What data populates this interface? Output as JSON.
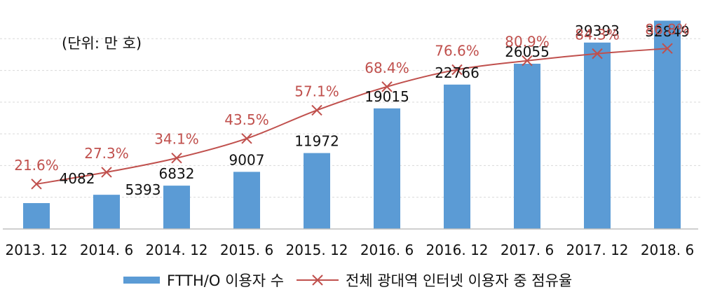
{
  "unit_note": "(단위: 만 호)",
  "legend": {
    "bar_label": "FTTH/O 이용자 수",
    "line_label": "전체 광대역 인터넷 이용자 중 점유율"
  },
  "colors": {
    "bar": "#5b9bd5",
    "line": "#c0504d",
    "line_label": "#c0504d",
    "axis": "#bfbfbf",
    "grid": "#d9d9d9"
  },
  "chart_data": {
    "type": "bar",
    "categories": [
      "2013. 12",
      "2014. 6",
      "2014. 12",
      "2015. 6",
      "2015. 12",
      "2016. 6",
      "2016. 12",
      "2017. 6",
      "2017. 12",
      "2018. 6"
    ],
    "series": [
      {
        "name": "FTTH/O 이용자 수",
        "type": "bar",
        "values": [
          4082,
          5393,
          6832,
          9007,
          11972,
          19015,
          22766,
          26055,
          29393,
          32849
        ],
        "labels": [
          "4082",
          "5393",
          "6832",
          "9007",
          "11972",
          "19015",
          "22766",
          "26055",
          "29393",
          "32849"
        ]
      },
      {
        "name": "전체 광대역 인터넷 이용자 중 점유율",
        "type": "line",
        "marker": "x",
        "values": [
          21.6,
          27.3,
          34.1,
          43.5,
          57.1,
          68.4,
          76.6,
          80.9,
          84.3,
          86.8
        ],
        "labels": [
          "21.6%",
          "27.3%",
          "34.1%",
          "43.5%",
          "57.1%",
          "68.4%",
          "76.6%",
          "80.9%",
          "84.3%",
          "86.8%"
        ]
      }
    ],
    "ylim_bar": [
      0,
      35000
    ],
    "ylim_line": [
      0,
      100
    ],
    "grid": true,
    "legend_position": "bottom"
  }
}
